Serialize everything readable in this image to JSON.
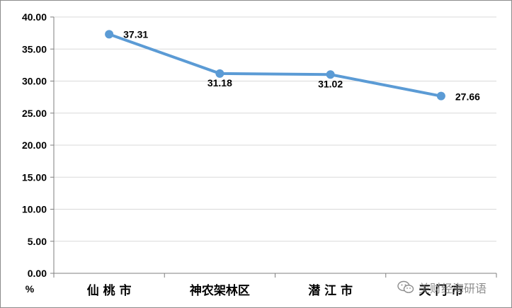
{
  "chart_data": {
    "type": "line",
    "categories": [
      "仙 桃 市",
      "神农架林区",
      "潜 江 市",
      "天 门 市"
    ],
    "series": [
      {
        "values": [
          37.31,
          31.18,
          31.02,
          27.66
        ]
      }
    ],
    "data_labels": [
      "37.31",
      "31.18",
      "31.02",
      "27.66"
    ],
    "yticks": [
      "0.00",
      "5.00",
      "10.00",
      "15.00",
      "20.00",
      "25.00",
      "30.00",
      "35.00",
      "40.00"
    ],
    "ylim": [
      0,
      40
    ],
    "ylabel": "%",
    "xlabel": "",
    "title": "",
    "grid": true,
    "line_color": "#5b9bd5",
    "grid_color": "#d9d9d9"
  },
  "watermark": {
    "text": "美财经海研语",
    "icon": "wechat-icon"
  }
}
